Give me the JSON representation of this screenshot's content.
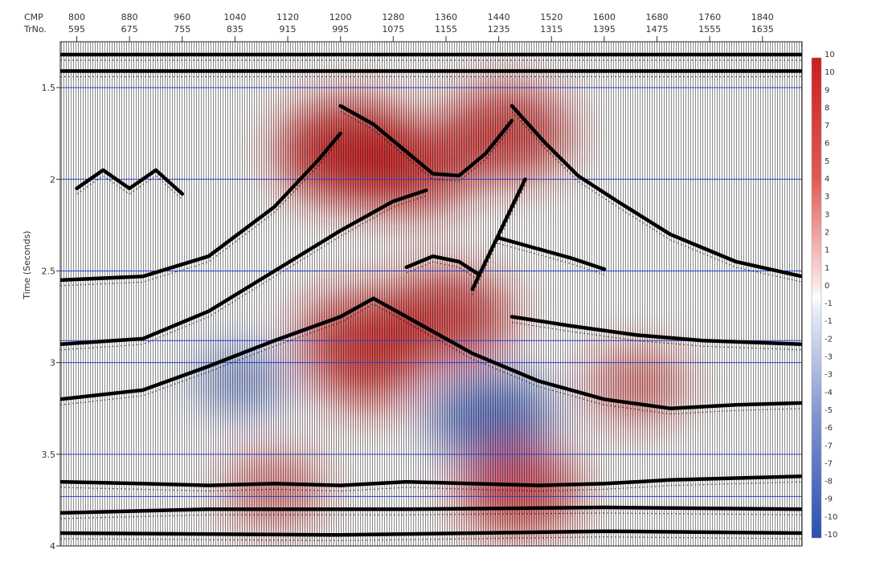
{
  "chart_data": {
    "type": "heatmap",
    "title": "",
    "top_axis": {
      "row1_label": "CMP",
      "row2_label": "TrNo.",
      "cmp": [
        800,
        880,
        960,
        1040,
        1120,
        1200,
        1280,
        1360,
        1440,
        1520,
        1600,
        1680,
        1760,
        1840
      ],
      "trno": [
        595,
        675,
        755,
        835,
        915,
        995,
        1075,
        1155,
        1235,
        1315,
        1395,
        1475,
        1555,
        1635
      ]
    },
    "y_axis": {
      "label": "Time (Seconds)",
      "ticks": [
        "1.5",
        "2",
        "2.5",
        "3",
        "3.5",
        "4"
      ],
      "ylim": [
        4.0,
        1.25
      ],
      "gridlines": [
        1.5,
        2.0,
        2.5,
        2.88,
        3.0,
        3.5,
        3.73
      ]
    },
    "xlim": [
      775,
      1900
    ],
    "colorbar": {
      "labels": [
        "10",
        "10",
        "9",
        "8",
        "7",
        "6",
        "5",
        "4",
        "3",
        "3",
        "2",
        "1",
        "1",
        "0",
        "-1",
        "-1",
        "-2",
        "-3",
        "-3",
        "-4",
        "-5",
        "-6",
        "-7",
        "-7",
        "-8",
        "-9",
        "-10",
        "-10"
      ],
      "range": [
        -10,
        10
      ],
      "colors": {
        "positive": "#c81e1e",
        "zero": "#ffffff",
        "negative": "#2b4fb0"
      }
    },
    "anomalies": [
      {
        "cmp": 1215,
        "t": 1.85,
        "value": 9
      },
      {
        "cmp": 1310,
        "t": 1.95,
        "value": 6
      },
      {
        "cmp": 1450,
        "t": 1.75,
        "value": 7
      },
      {
        "cmp": 1230,
        "t": 2.85,
        "value": 6
      },
      {
        "cmp": 1360,
        "t": 2.75,
        "value": 7
      },
      {
        "cmp": 1240,
        "t": 3.05,
        "value": 4
      },
      {
        "cmp": 1430,
        "t": 3.3,
        "value": -6
      },
      {
        "cmp": 1050,
        "t": 3.1,
        "value": -2
      },
      {
        "cmp": 1470,
        "t": 3.7,
        "value": 6
      },
      {
        "cmp": 1100,
        "t": 3.7,
        "value": 3
      },
      {
        "cmp": 1650,
        "t": 3.12,
        "value": 3
      }
    ],
    "reflectors": [
      {
        "pts": [
          [
            775,
            1.32
          ],
          [
            1900,
            1.32
          ]
        ]
      },
      {
        "pts": [
          [
            775,
            1.41
          ],
          [
            1900,
            1.41
          ]
        ]
      },
      {
        "pts": [
          [
            775,
            2.55
          ],
          [
            900,
            2.53
          ],
          [
            1000,
            2.42
          ],
          [
            1100,
            2.15
          ],
          [
            1165,
            1.9
          ],
          [
            1200,
            1.75
          ]
        ]
      },
      {
        "pts": [
          [
            1200,
            1.6
          ],
          [
            1250,
            1.7
          ],
          [
            1300,
            1.85
          ],
          [
            1340,
            1.97
          ],
          [
            1380,
            1.98
          ],
          [
            1420,
            1.86
          ],
          [
            1460,
            1.68
          ]
        ]
      },
      {
        "pts": [
          [
            1460,
            1.6
          ],
          [
            1510,
            1.8
          ],
          [
            1560,
            1.98
          ],
          [
            1620,
            2.12
          ],
          [
            1700,
            2.3
          ],
          [
            1800,
            2.45
          ],
          [
            1900,
            2.53
          ]
        ]
      },
      {
        "pts": [
          [
            775,
            2.9
          ],
          [
            900,
            2.87
          ],
          [
            1000,
            2.72
          ],
          [
            1100,
            2.5
          ],
          [
            1200,
            2.28
          ],
          [
            1280,
            2.12
          ],
          [
            1330,
            2.06
          ]
        ]
      },
      {
        "pts": [
          [
            775,
            3.2
          ],
          [
            900,
            3.15
          ],
          [
            1000,
            3.02
          ],
          [
            1100,
            2.88
          ],
          [
            1200,
            2.75
          ],
          [
            1250,
            2.65
          ],
          [
            1300,
            2.75
          ],
          [
            1400,
            2.95
          ],
          [
            1500,
            3.1
          ],
          [
            1600,
            3.2
          ],
          [
            1700,
            3.25
          ],
          [
            1800,
            3.23
          ],
          [
            1900,
            3.22
          ]
        ]
      },
      {
        "pts": [
          [
            1300,
            2.48
          ],
          [
            1340,
            2.42
          ],
          [
            1380,
            2.45
          ],
          [
            1410,
            2.52
          ]
        ]
      },
      {
        "pts": [
          [
            1440,
            2.32
          ],
          [
            1500,
            2.38
          ],
          [
            1550,
            2.43
          ],
          [
            1600,
            2.49
          ]
        ]
      },
      {
        "pts": [
          [
            1460,
            2.75
          ],
          [
            1550,
            2.8
          ],
          [
            1650,
            2.85
          ],
          [
            1750,
            2.88
          ],
          [
            1900,
            2.9
          ]
        ]
      },
      {
        "pts": [
          [
            775,
            3.65
          ],
          [
            900,
            3.66
          ],
          [
            1000,
            3.67
          ],
          [
            1100,
            3.66
          ],
          [
            1200,
            3.67
          ],
          [
            1300,
            3.65
          ],
          [
            1400,
            3.66
          ],
          [
            1500,
            3.67
          ],
          [
            1600,
            3.66
          ],
          [
            1700,
            3.64
          ],
          [
            1800,
            3.63
          ],
          [
            1900,
            3.62
          ]
        ]
      },
      {
        "pts": [
          [
            775,
            3.82
          ],
          [
            1000,
            3.8
          ],
          [
            1300,
            3.8
          ],
          [
            1600,
            3.79
          ],
          [
            1900,
            3.8
          ]
        ]
      },
      {
        "pts": [
          [
            775,
            3.93
          ],
          [
            1200,
            3.94
          ],
          [
            1600,
            3.92
          ],
          [
            1900,
            3.93
          ]
        ]
      },
      {
        "pts": [
          [
            800,
            2.05
          ],
          [
            840,
            1.95
          ],
          [
            880,
            2.05
          ],
          [
            920,
            1.95
          ],
          [
            960,
            2.08
          ]
        ]
      },
      {
        "pts": [
          [
            1400,
            2.6
          ],
          [
            1420,
            2.45
          ],
          [
            1440,
            2.3
          ],
          [
            1460,
            2.15
          ],
          [
            1480,
            2.0
          ]
        ]
      }
    ]
  }
}
